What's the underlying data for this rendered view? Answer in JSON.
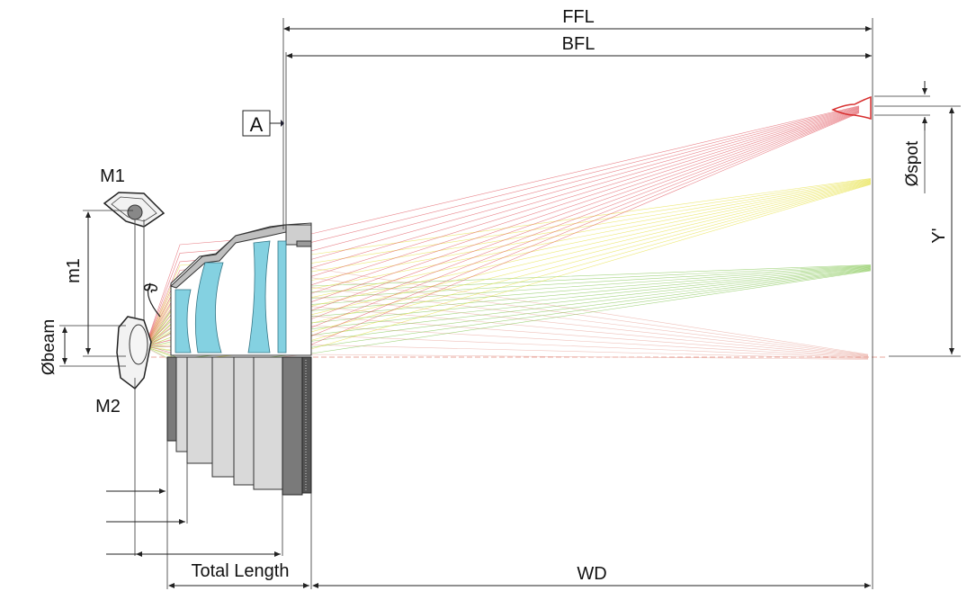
{
  "labels": {
    "ffl": "FFL",
    "bfl": "BFL",
    "a": "A",
    "m1": "M1",
    "m2": "M2",
    "m1_dist": "m1",
    "theta": "ϑ",
    "beam": "Øbeam",
    "spot": "Øspot",
    "image_height": "Y'",
    "total_length": "Total Length",
    "wd": "WD"
  },
  "colors": {
    "ray_on_axis": "#e8a79d",
    "ray_green": "#7ec34a",
    "ray_yellow": "#e6e03a",
    "ray_red": "#e0505a",
    "glass": "#7ecfe0"
  }
}
